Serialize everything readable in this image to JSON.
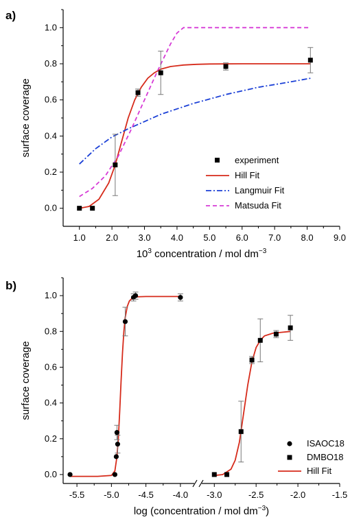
{
  "chart_data": [
    {
      "panel_label": "a)",
      "type": "scatter",
      "xlabel_base": "10",
      "xlabel_sup": "3",
      "xlabel_rest": " concentration / mol dm",
      "xlabel_unit_sup": "−3",
      "ylabel": "surface coverage",
      "xlim": [
        0.5,
        9.0
      ],
      "ylim": [
        -0.1,
        1.1
      ],
      "xticks": [
        "1.0",
        "2.0",
        "3.0",
        "4.0",
        "5.0",
        "6.0",
        "7.0",
        "8.0",
        "9.0"
      ],
      "xtick_values": [
        1,
        2,
        3,
        4,
        5,
        6,
        7,
        8,
        9
      ],
      "yticks": [
        "0.0",
        "0.2",
        "0.4",
        "0.6",
        "0.8",
        "1.0"
      ],
      "ytick_values": [
        0,
        0.2,
        0.4,
        0.6,
        0.8,
        1.0
      ],
      "legend_position": "bottom-right",
      "series": [
        {
          "name": "experiment",
          "kind": "points",
          "marker": "square",
          "color": "#000000",
          "x": [
            1.0,
            1.4,
            2.1,
            2.8,
            3.5,
            5.5,
            8.1
          ],
          "y": [
            0.0,
            0.0,
            0.24,
            0.64,
            0.75,
            0.785,
            0.82
          ],
          "err": [
            0,
            0,
            0.17,
            0.02,
            0.12,
            0.02,
            0.07
          ]
        },
        {
          "name": "Hill Fit",
          "kind": "line",
          "style": "solid",
          "color": "#d62a1a",
          "x": [
            1.0,
            1.3,
            1.6,
            1.9,
            2.1,
            2.3,
            2.5,
            2.7,
            2.9,
            3.1,
            3.3,
            3.5,
            3.8,
            4.2,
            4.6,
            5.0,
            6.0,
            7.0,
            8.1
          ],
          "y": [
            0.0,
            0.01,
            0.05,
            0.14,
            0.24,
            0.37,
            0.5,
            0.6,
            0.67,
            0.72,
            0.75,
            0.77,
            0.785,
            0.793,
            0.797,
            0.799,
            0.8,
            0.8,
            0.8
          ]
        },
        {
          "name": "Langmuir Fit",
          "kind": "line",
          "style": "dashdot",
          "color": "#1a3fd6",
          "x": [
            1.0,
            1.5,
            2.0,
            2.5,
            3.0,
            3.5,
            4.0,
            4.5,
            5.0,
            5.5,
            6.0,
            6.5,
            7.0,
            7.5,
            8.1
          ],
          "y": [
            0.245,
            0.33,
            0.395,
            0.44,
            0.48,
            0.52,
            0.55,
            0.58,
            0.605,
            0.63,
            0.65,
            0.67,
            0.685,
            0.7,
            0.72
          ]
        },
        {
          "name": "Matsuda Fit",
          "kind": "line",
          "style": "dashed",
          "color": "#d63ad6",
          "x": [
            1.0,
            1.4,
            1.8,
            2.2,
            2.6,
            3.0,
            3.4,
            3.8,
            4.0,
            4.2,
            4.4,
            5.0,
            6.0,
            7.0,
            8.1
          ],
          "y": [
            0.065,
            0.11,
            0.18,
            0.29,
            0.44,
            0.6,
            0.76,
            0.91,
            0.97,
            1.0,
            1.0,
            1.0,
            1.0,
            1.0,
            1.0
          ]
        }
      ]
    },
    {
      "panel_label": "b)",
      "type": "scatter",
      "xlabel": "log (concentration / mol dm",
      "xlabel_unit_sup": "−3",
      "xlabel_close": ")",
      "ylabel": "surface coverage",
      "broken_axis": true,
      "x_segments": [
        {
          "xlim": [
            -5.7,
            -3.8
          ],
          "xticks": [
            "-5.5",
            "-5.0",
            "-4.5",
            "-4.0"
          ],
          "xtick_values": [
            -5.5,
            -5.0,
            -4.5,
            -4.0
          ]
        },
        {
          "xlim": [
            -3.15,
            -1.5
          ],
          "xticks": [
            "-3.0",
            "-2.5",
            "-2.0",
            "-1.5"
          ],
          "xtick_values": [
            -3.0,
            -2.5,
            -2.0,
            -1.5
          ]
        }
      ],
      "ylim": [
        -0.05,
        1.1
      ],
      "yticks": [
        "0.0",
        "0.2",
        "0.4",
        "0.6",
        "0.8",
        "1.0"
      ],
      "ytick_values": [
        0,
        0.2,
        0.4,
        0.6,
        0.8,
        1.0
      ],
      "legend_position": "bottom-right",
      "series": [
        {
          "name": "ISAOC18",
          "kind": "points",
          "marker": "circle",
          "color": "#000000",
          "segment": 0,
          "x": [
            -5.6,
            -4.95,
            -4.93,
            -4.92,
            -4.91,
            -4.8,
            -4.68,
            -4.65,
            -4.0
          ],
          "y": [
            0.0,
            0.0,
            0.1,
            0.235,
            0.17,
            0.855,
            0.99,
            1.0,
            0.99
          ],
          "err": [
            0,
            0,
            0,
            0.04,
            0.05,
            0.08,
            0.02,
            0.02,
            0.02
          ]
        },
        {
          "name": "DMBO18",
          "kind": "points",
          "marker": "square",
          "color": "#000000",
          "segment": 1,
          "x": [
            -3.0,
            -2.85,
            -2.68,
            -2.55,
            -2.45,
            -2.26,
            -2.09
          ],
          "y": [
            0.0,
            0.0,
            0.24,
            0.64,
            0.75,
            0.785,
            0.82
          ],
          "err": [
            0,
            0,
            0.17,
            0.02,
            0.12,
            0.02,
            0.07
          ]
        },
        {
          "name": "Hill Fit",
          "kind": "line",
          "style": "solid",
          "color": "#d62a1a",
          "segment": 0,
          "x": [
            -5.6,
            -5.2,
            -5.0,
            -4.95,
            -4.92,
            -4.9,
            -4.88,
            -4.86,
            -4.84,
            -4.82,
            -4.8,
            -4.77,
            -4.74,
            -4.7,
            -4.65,
            -4.5,
            -4.0
          ],
          "y": [
            -0.01,
            -0.01,
            -0.005,
            0.02,
            0.1,
            0.2,
            0.35,
            0.52,
            0.68,
            0.8,
            0.88,
            0.94,
            0.97,
            0.985,
            0.993,
            0.995,
            0.995
          ]
        },
        {
          "name": "",
          "kind": "line",
          "style": "solid",
          "color": "#d62a1a",
          "segment": 1,
          "x": [
            -3.0,
            -2.9,
            -2.8,
            -2.75,
            -2.7,
            -2.65,
            -2.6,
            -2.55,
            -2.5,
            -2.45,
            -2.4,
            -2.3,
            -2.2,
            -2.09
          ],
          "y": [
            -0.005,
            0.0,
            0.03,
            0.08,
            0.18,
            0.34,
            0.5,
            0.63,
            0.71,
            0.75,
            0.775,
            0.79,
            0.795,
            0.8
          ]
        }
      ]
    }
  ]
}
